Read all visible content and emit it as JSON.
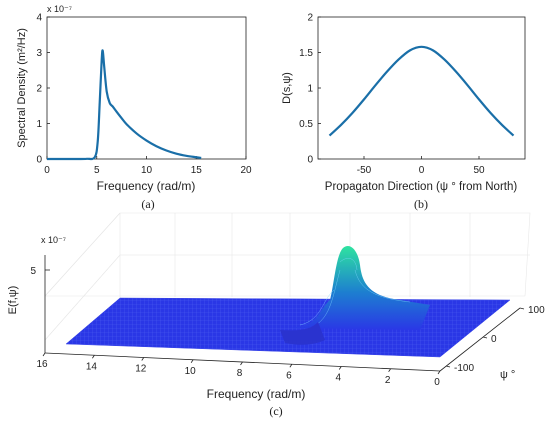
{
  "colors": {
    "line": "#1a6fa8",
    "axis": "#222222",
    "surface_low": "#2a37e6",
    "surface_mid": "#1d7fd0",
    "surface_high": "#2fe3a0",
    "mesh": "#8fa0ff"
  },
  "chart_data": [
    {
      "id": "a",
      "type": "line",
      "subplot_label": "(a)",
      "xlabel": "Frequency (rad/m)",
      "ylabel": "Spectral Density (m²/Hz)",
      "y_exponent": "x 10⁻⁷",
      "xlim": [
        0,
        20
      ],
      "ylim": [
        0,
        4
      ],
      "xticks": [
        "0",
        "5",
        "10",
        "15",
        "20"
      ],
      "yticks": [
        "0",
        "1",
        "2",
        "3",
        "4"
      ],
      "series": [
        {
          "x": [
            0,
            1,
            2,
            3,
            4,
            4.8,
            5.1,
            5.3,
            5.5,
            5.6,
            5.75,
            6.0,
            6.3,
            6.6,
            7,
            7.5,
            8,
            9,
            10,
            11,
            12,
            13,
            14,
            15,
            15.5
          ],
          "y": [
            0,
            0,
            0,
            0,
            0.005,
            0.05,
            0.5,
            1.6,
            2.8,
            3.05,
            2.6,
            1.9,
            1.58,
            1.48,
            1.33,
            1.15,
            0.98,
            0.72,
            0.52,
            0.36,
            0.24,
            0.15,
            0.09,
            0.05,
            0.03
          ]
        }
      ]
    },
    {
      "id": "b",
      "type": "line",
      "subplot_label": "(b)",
      "xlabel": "Propagaton Direction (ψ ° from North)",
      "ylabel": "D(s,ψ)",
      "xlim": [
        -90,
        90
      ],
      "ylim": [
        0,
        2
      ],
      "xticks": [
        "-50",
        "0",
        "50"
      ],
      "yticks": [
        "0",
        "0.5",
        "1",
        "1.5",
        "2"
      ],
      "series": [
        {
          "x": [
            -80,
            -70,
            -60,
            -50,
            -40,
            -30,
            -20,
            -10,
            0,
            10,
            20,
            30,
            40,
            50,
            60,
            70,
            80
          ],
          "y": [
            0.33,
            0.48,
            0.65,
            0.84,
            1.04,
            1.23,
            1.4,
            1.53,
            1.58,
            1.53,
            1.4,
            1.23,
            1.04,
            0.84,
            0.65,
            0.48,
            0.33
          ]
        }
      ]
    },
    {
      "id": "c",
      "type": "surface",
      "subplot_label": "(c)",
      "xlabel": "Frequency (rad/m)",
      "ylabel": "ψ °",
      "zlabel": "E(f,ψ)",
      "z_exponent": "x 10⁻⁷",
      "xlim": [
        0,
        16
      ],
      "ylim": [
        -100,
        100
      ],
      "zlim": [
        0,
        5
      ],
      "xticks": [
        "0",
        "2",
        "4",
        "6",
        "8",
        "10",
        "12",
        "14",
        "16"
      ],
      "yticks": [
        "-100",
        "0",
        "100"
      ],
      "zticks": [
        "5"
      ],
      "description_values": {
        "peak_frequency": 5.6,
        "peak_direction": 0,
        "peak_value": 4.9
      }
    }
  ]
}
